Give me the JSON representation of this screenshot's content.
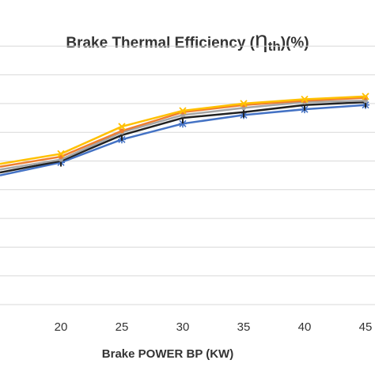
{
  "chart_data": {
    "type": "line",
    "title": {
      "main": "Brake Thermal Efficiency (",
      "symbol": "η",
      "subscript": "th",
      "suffix": ")(%)"
    },
    "xlabel": "Brake POWER BP (KW)",
    "ylabel": "",
    "x_ticks": [
      "20",
      "25",
      "30",
      "35",
      "40",
      "45"
    ],
    "x": [
      15,
      20,
      25,
      30,
      35,
      40,
      45
    ],
    "xlim": [
      15,
      45
    ],
    "ylim": [
      0,
      10
    ],
    "y_gridlines": [
      1,
      2,
      3,
      4,
      5,
      6,
      7,
      8,
      9
    ],
    "grid": true,
    "legend": "none",
    "series": [
      {
        "color": "#4472C4",
        "marker": "star",
        "values": [
          4.5,
          4.95,
          5.75,
          6.3,
          6.6,
          6.8,
          6.95
        ]
      },
      {
        "color": "#222222",
        "marker": "bar",
        "values": [
          4.6,
          5.0,
          5.9,
          6.5,
          6.7,
          6.95,
          7.05
        ]
      },
      {
        "color": "#A5A5A5",
        "marker": "circle",
        "values": [
          4.7,
          5.05,
          6.0,
          6.6,
          6.85,
          7.05,
          7.1
        ]
      },
      {
        "color": "#ED7D31",
        "marker": "circle",
        "values": [
          4.8,
          5.15,
          6.05,
          6.7,
          6.95,
          7.1,
          7.2
        ]
      },
      {
        "color": "#FFC000",
        "marker": "x",
        "values": [
          4.9,
          5.25,
          6.2,
          6.75,
          7.0,
          7.15,
          7.25
        ]
      }
    ]
  }
}
